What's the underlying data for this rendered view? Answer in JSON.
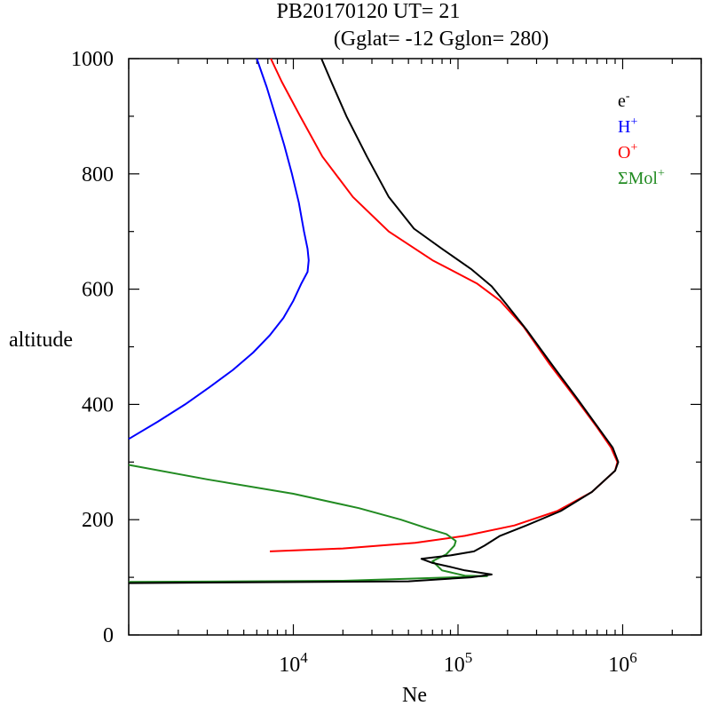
{
  "chart_data": {
    "type": "line",
    "title": {
      "line1": "PB20170120   UT=  21",
      "line2": "(Gglat= -12   Gglon=  280)"
    },
    "xlabel": "Ne",
    "ylabel": "altitude",
    "x_scale": "log",
    "xlim": [
      1000,
      3000000
    ],
    "ylim": [
      0,
      1000
    ],
    "x_major_ticks": [
      {
        "value": 10000,
        "base": "10",
        "exp": "4"
      },
      {
        "value": 100000,
        "base": "10",
        "exp": "5"
      },
      {
        "value": 1000000,
        "base": "10",
        "exp": "6"
      }
    ],
    "y_ticks": [
      0,
      200,
      400,
      600,
      800,
      1000
    ],
    "legend": {
      "placement": "top-right",
      "entries": [
        {
          "base": "e",
          "sup": "-",
          "color": "#000000"
        },
        {
          "base": "H",
          "sup": "+",
          "color": "#0000ff"
        },
        {
          "base": "O",
          "sup": "+",
          "color": "#ff0000"
        },
        {
          "base": "ΣMol",
          "sup": "+",
          "color": "#228b22"
        }
      ]
    },
    "series": [
      {
        "name": "H+",
        "color": "#0000ff",
        "points": [
          [
            1000,
            340
          ],
          [
            1500,
            370
          ],
          [
            2200,
            400
          ],
          [
            3100,
            430
          ],
          [
            4300,
            460
          ],
          [
            5700,
            490
          ],
          [
            7200,
            520
          ],
          [
            8700,
            550
          ],
          [
            10000,
            580
          ],
          [
            11200,
            610
          ],
          [
            12200,
            630
          ],
          [
            12400,
            650
          ],
          [
            12200,
            670
          ],
          [
            11600,
            700
          ],
          [
            10800,
            750
          ],
          [
            9800,
            800
          ],
          [
            8800,
            850
          ],
          [
            7800,
            900
          ],
          [
            6900,
            950
          ],
          [
            6000,
            1000
          ]
        ]
      },
      {
        "name": "O+",
        "color": "#ff0000",
        "points": [
          [
            7200,
            145
          ],
          [
            20000,
            150
          ],
          [
            55000,
            160
          ],
          [
            110000,
            172
          ],
          [
            220000,
            190
          ],
          [
            400000,
            215
          ],
          [
            650000,
            248
          ],
          [
            900000,
            285
          ],
          [
            930000,
            300
          ],
          [
            850000,
            325
          ],
          [
            700000,
            360
          ],
          [
            520000,
            410
          ],
          [
            360000,
            470
          ],
          [
            250000,
            535
          ],
          [
            180000,
            580
          ],
          [
            130000,
            610
          ],
          [
            70000,
            650
          ],
          [
            38000,
            700
          ],
          [
            23000,
            760
          ],
          [
            15000,
            830
          ],
          [
            11000,
            900
          ],
          [
            8500,
            960
          ],
          [
            7300,
            1000
          ]
        ]
      },
      {
        "name": "ΣMol+",
        "color": "#228b22",
        "points": [
          [
            1000,
            295
          ],
          [
            3000,
            270
          ],
          [
            10000,
            245
          ],
          [
            25000,
            220
          ],
          [
            45000,
            200
          ],
          [
            65000,
            185
          ],
          [
            85000,
            175
          ],
          [
            97000,
            163
          ],
          [
            95000,
            155
          ],
          [
            85000,
            140
          ],
          [
            70000,
            128
          ],
          [
            80000,
            112
          ],
          [
            110000,
            103
          ],
          [
            150000,
            102
          ],
          [
            20000,
            94
          ],
          [
            1000,
            92
          ]
        ]
      },
      {
        "name": "e-",
        "color": "#000000",
        "points": [
          [
            1000,
            90
          ],
          [
            50000,
            93
          ],
          [
            120000,
            100
          ],
          [
            160000,
            105
          ],
          [
            110000,
            112
          ],
          [
            90000,
            118
          ],
          [
            70000,
            125
          ],
          [
            60000,
            132
          ],
          [
            90000,
            138
          ],
          [
            125000,
            145
          ],
          [
            145000,
            155
          ],
          [
            180000,
            172
          ],
          [
            260000,
            190
          ],
          [
            420000,
            215
          ],
          [
            650000,
            248
          ],
          [
            900000,
            285
          ],
          [
            940000,
            300
          ],
          [
            870000,
            325
          ],
          [
            710000,
            360
          ],
          [
            530000,
            410
          ],
          [
            370000,
            470
          ],
          [
            260000,
            530
          ],
          [
            195000,
            575
          ],
          [
            160000,
            605
          ],
          [
            120000,
            635
          ],
          [
            80000,
            670
          ],
          [
            54000,
            705
          ],
          [
            38000,
            760
          ],
          [
            28000,
            830
          ],
          [
            21000,
            900
          ],
          [
            17000,
            960
          ],
          [
            14800,
            1000
          ]
        ]
      }
    ]
  }
}
